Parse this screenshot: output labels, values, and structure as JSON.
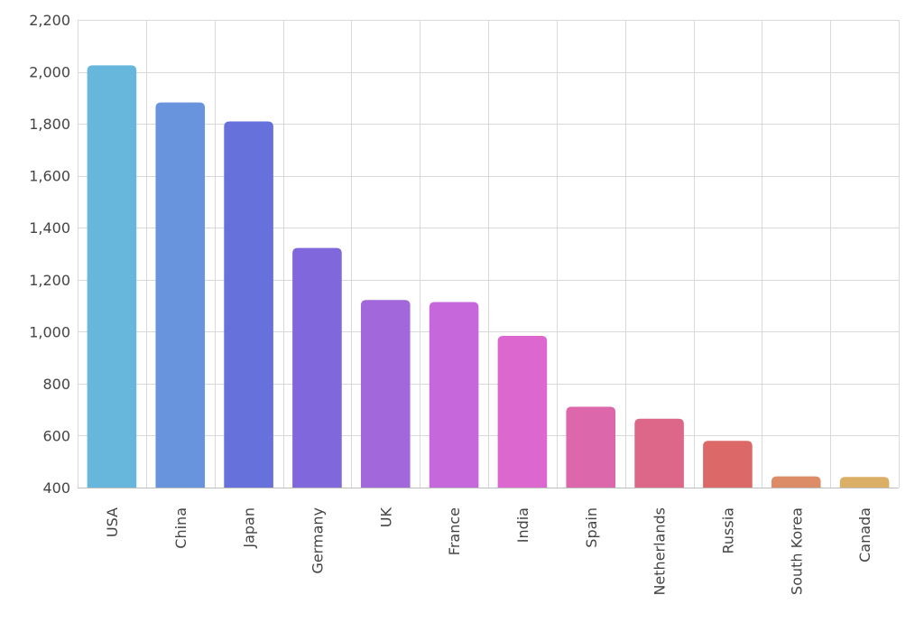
{
  "chart_data": {
    "type": "bar",
    "title": "",
    "xlabel": "",
    "ylabel": "",
    "ylim": [
      400,
      2200
    ],
    "yticks": [
      "400",
      "600",
      "800",
      "1,000",
      "1,200",
      "1,400",
      "1,600",
      "1,800",
      "2,000",
      "2,200"
    ],
    "ytick_values": [
      400,
      600,
      800,
      1000,
      1200,
      1400,
      1600,
      1800,
      2000,
      2200
    ],
    "grid": true,
    "legend": "none",
    "categories": [
      "USA",
      "China",
      "Japan",
      "Germany",
      "UK",
      "France",
      "India",
      "Spain",
      "Netherlands",
      "Russia",
      "South Korea",
      "Canada"
    ],
    "values": [
      2025,
      1882,
      1809,
      1322,
      1122,
      1114,
      984,
      711,
      665,
      580,
      443,
      441
    ],
    "colors": [
      "#67b7dc",
      "#6794dc",
      "#6771dc",
      "#8067dc",
      "#a367dc",
      "#c767dc",
      "#dc67ce",
      "#dc67ab",
      "#dc6788",
      "#dc6967",
      "#dc8c67",
      "#dcaf67"
    ]
  }
}
